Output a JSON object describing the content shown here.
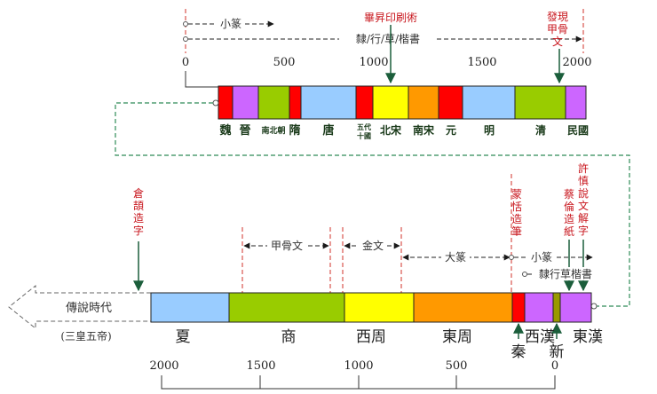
{
  "top_timeline": {
    "axis_ticks": [
      "0",
      "500",
      "1000",
      "1500",
      "2000"
    ],
    "segments": [
      {
        "color": "#ff0000"
      },
      {
        "color": "#cc66ff"
      },
      {
        "color": "#99cc00"
      },
      {
        "color": "#ff0000"
      },
      {
        "color": "#99ccff"
      },
      {
        "color": "#ff0000"
      },
      {
        "color": "#ffff00"
      },
      {
        "color": "#ff9900"
      },
      {
        "color": "#ff0000"
      },
      {
        "color": "#99ccff"
      },
      {
        "color": "#99cc00"
      },
      {
        "color": "#cc66ff"
      }
    ],
    "dynasty_labels": [
      "魏",
      "晉",
      "南北朝",
      "隋",
      "唐",
      "五代\n十國",
      "北宋",
      "南宋",
      "元",
      "明",
      "清",
      "民國"
    ],
    "script_spans": [
      {
        "label": "小篆"
      },
      {
        "label": "隸/行/草/楷書"
      }
    ],
    "events": [
      {
        "label": "畢昇印刷術"
      },
      {
        "label": "發現\n甲骨\n文"
      }
    ]
  },
  "bottom_timeline": {
    "axis_ticks": [
      "2000",
      "1500",
      "1000",
      "500",
      "0"
    ],
    "prehistory": {
      "label": "傳說時代",
      "sub_label": "(三皇五帝)"
    },
    "segments": [
      {
        "color": "#99ccff"
      },
      {
        "color": "#99cc00"
      },
      {
        "color": "#ffff00"
      },
      {
        "color": "#ff9900"
      },
      {
        "color": "#ff0000"
      },
      {
        "color": "#cc66ff"
      },
      {
        "color": "#999900"
      },
      {
        "color": "#cc66ff"
      }
    ],
    "dynasty_labels": [
      "夏",
      "商",
      "西周",
      "東周",
      "秦",
      "西漢",
      "新",
      "東漢"
    ],
    "script_spans": [
      {
        "label": "甲骨文"
      },
      {
        "label": "金文"
      },
      {
        "label": "大篆"
      },
      {
        "label": "小篆"
      },
      {
        "label": "隸行草楷書"
      }
    ],
    "events": [
      {
        "label": "倉\n頡\n造\n字"
      },
      {
        "label": "蒙\n恬\n造\n筆"
      },
      {
        "label": "蔡\n倫\n造\n紙"
      },
      {
        "label": "許\n慎\n說\n文\n解\n字"
      }
    ]
  }
}
